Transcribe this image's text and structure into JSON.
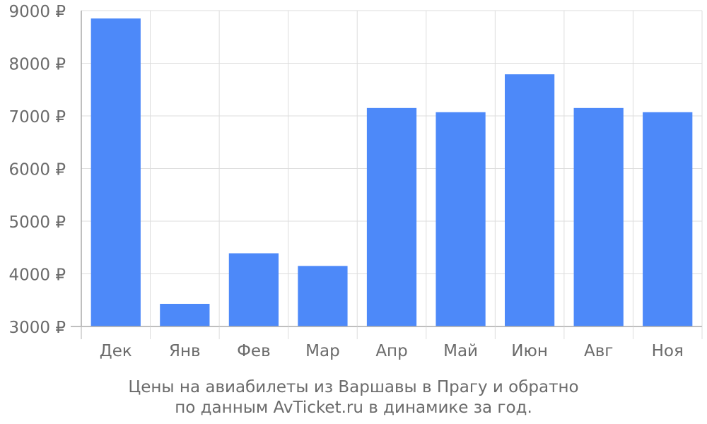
{
  "chart_data": {
    "type": "bar",
    "categories": [
      "Дек",
      "Янв",
      "Фев",
      "Мар",
      "Апр",
      "Май",
      "Июн",
      "Авг",
      "Ноя"
    ],
    "values": [
      8850,
      3430,
      4390,
      4150,
      7150,
      7070,
      7790,
      7150,
      7070
    ],
    "ylim": [
      3000,
      9000
    ],
    "yticks": [
      3000,
      4000,
      5000,
      6000,
      7000,
      8000,
      9000
    ],
    "ytick_labels": [
      "3000 ₽",
      "4000 ₽",
      "5000 ₽",
      "6000 ₽",
      "7000 ₽",
      "8000 ₽",
      "9000 ₽"
    ],
    "grid": true,
    "bar_color": "#4d89f9",
    "title": "",
    "xlabel": "",
    "ylabel": ""
  },
  "caption": {
    "line1": "Цены на авиабилеты из Варшавы в Прагу и обратно",
    "line2": "по данным AvTicket.ru в динамике за год."
  },
  "colors": {
    "grid": "#dddddd",
    "axis": "#aaaaaa",
    "tick_text": "#6b6b6b"
  }
}
